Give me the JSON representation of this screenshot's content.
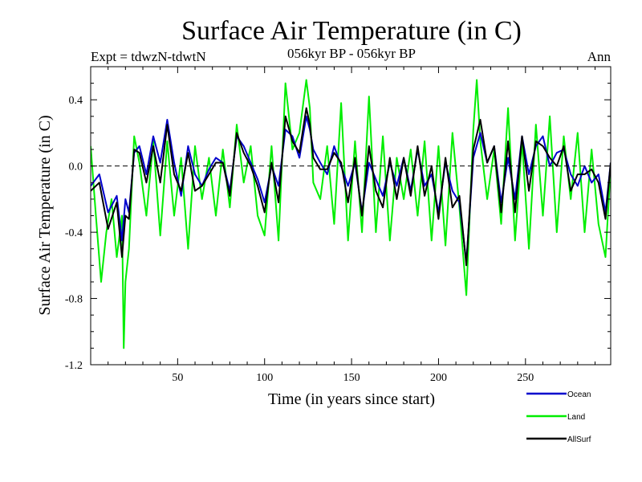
{
  "chart_data": {
    "type": "line",
    "title": "Surface Air Temperature (in C)",
    "subtitle": "056kyr BP - 056kyr BP",
    "left_label": "Expt = tdwzN-tdwtN",
    "right_label": "Ann",
    "xlabel": "Time (in years since start)",
    "ylabel": "Surface Air Temperature (in C)",
    "xlim": [
      0,
      299
    ],
    "ylim": [
      -1.2,
      0.6
    ],
    "xticks": [
      50,
      100,
      150,
      200,
      250
    ],
    "yticks": [
      0.4,
      0.0,
      -0.4,
      -0.8,
      -1.2
    ],
    "ytick_labels": [
      "0.4",
      "0.0",
      "-0.4",
      "-0.8",
      "-1.2"
    ],
    "reference_line": 0.0,
    "reference_line_style": "dashed",
    "grid": false,
    "legend_position": "bottom-right",
    "series": [
      {
        "name": "Ocean",
        "color": "#0000cc",
        "x": [
          0,
          5,
          10,
          15,
          18,
          20,
          22,
          25,
          28,
          32,
          36,
          40,
          44,
          48,
          52,
          56,
          60,
          64,
          68,
          72,
          76,
          80,
          84,
          88,
          92,
          96,
          100,
          104,
          108,
          112,
          116,
          120,
          124,
          126,
          128,
          132,
          136,
          140,
          144,
          148,
          152,
          156,
          160,
          164,
          168,
          172,
          176,
          180,
          184,
          188,
          192,
          196,
          200,
          204,
          208,
          212,
          216,
          220,
          224,
          228,
          232,
          236,
          240,
          244,
          248,
          252,
          256,
          260,
          264,
          268,
          272,
          276,
          280,
          284,
          288,
          292,
          296,
          299
        ],
        "y": [
          -0.12,
          -0.05,
          -0.28,
          -0.18,
          -0.45,
          -0.2,
          -0.28,
          0.08,
          0.12,
          -0.05,
          0.18,
          0.02,
          0.28,
          0.02,
          -0.18,
          0.12,
          -0.05,
          -0.12,
          -0.02,
          0.05,
          0.02,
          -0.15,
          0.18,
          0.12,
          0.02,
          -0.08,
          -0.22,
          0.0,
          -0.12,
          0.22,
          0.18,
          0.05,
          0.3,
          0.22,
          0.1,
          0.02,
          -0.05,
          0.12,
          0.0,
          -0.12,
          0.02,
          -0.28,
          0.02,
          -0.08,
          -0.18,
          0.02,
          -0.12,
          0.05,
          -0.15,
          0.1,
          -0.12,
          -0.05,
          -0.28,
          0.02,
          -0.15,
          -0.22,
          -0.58,
          0.05,
          0.2,
          0.02,
          0.12,
          -0.22,
          0.05,
          -0.2,
          0.18,
          -0.05,
          0.12,
          0.18,
          0.0,
          0.08,
          0.1,
          -0.05,
          -0.12,
          0.0,
          -0.1,
          -0.05,
          -0.28,
          0.02
        ]
      },
      {
        "name": "Land",
        "color": "#00ee00",
        "x": [
          0,
          3,
          6,
          9,
          12,
          15,
          18,
          19,
          20,
          22,
          25,
          28,
          32,
          36,
          40,
          44,
          48,
          52,
          56,
          60,
          64,
          68,
          72,
          76,
          80,
          84,
          88,
          92,
          96,
          100,
          104,
          108,
          112,
          116,
          120,
          124,
          126,
          128,
          132,
          136,
          140,
          144,
          148,
          152,
          156,
          160,
          164,
          168,
          172,
          176,
          180,
          184,
          188,
          192,
          196,
          200,
          204,
          208,
          212,
          216,
          220,
          222,
          224,
          228,
          232,
          236,
          240,
          244,
          248,
          252,
          256,
          260,
          264,
          268,
          272,
          276,
          280,
          284,
          288,
          292,
          296,
          299
        ],
        "y": [
          0.12,
          -0.3,
          -0.7,
          -0.4,
          -0.2,
          -0.55,
          -0.3,
          -1.1,
          -0.7,
          -0.5,
          0.18,
          0.02,
          -0.3,
          0.15,
          -0.42,
          0.15,
          -0.3,
          0.05,
          -0.5,
          0.12,
          -0.2,
          0.05,
          -0.3,
          0.1,
          -0.25,
          0.25,
          -0.1,
          0.12,
          -0.3,
          -0.42,
          0.12,
          -0.45,
          0.5,
          0.1,
          0.2,
          0.52,
          0.35,
          -0.1,
          -0.2,
          0.12,
          -0.35,
          0.38,
          -0.45,
          0.15,
          -0.4,
          0.42,
          -0.4,
          0.18,
          -0.45,
          0.05,
          -0.2,
          0.1,
          -0.3,
          0.15,
          -0.45,
          0.12,
          -0.48,
          0.2,
          -0.25,
          -0.78,
          0.22,
          0.52,
          0.15,
          -0.2,
          0.1,
          -0.35,
          0.35,
          -0.45,
          0.15,
          -0.5,
          0.25,
          -0.3,
          0.3,
          -0.4,
          0.18,
          -0.2,
          0.2,
          -0.4,
          0.1,
          -0.35,
          -0.55,
          0.0
        ]
      },
      {
        "name": "AllSurf",
        "color": "#000000",
        "x": [
          0,
          5,
          10,
          15,
          18,
          20,
          22,
          25,
          28,
          32,
          36,
          40,
          44,
          48,
          52,
          56,
          60,
          64,
          68,
          72,
          76,
          80,
          84,
          88,
          92,
          96,
          100,
          104,
          108,
          112,
          116,
          120,
          124,
          126,
          128,
          132,
          136,
          140,
          144,
          148,
          152,
          156,
          160,
          164,
          168,
          172,
          176,
          180,
          184,
          188,
          192,
          196,
          200,
          204,
          208,
          212,
          216,
          220,
          224,
          228,
          232,
          236,
          240,
          244,
          248,
          252,
          256,
          260,
          264,
          268,
          272,
          276,
          280,
          284,
          288,
          292,
          296,
          299
        ],
        "y": [
          -0.15,
          -0.1,
          -0.38,
          -0.22,
          -0.55,
          -0.3,
          -0.32,
          0.1,
          0.08,
          -0.1,
          0.12,
          -0.1,
          0.25,
          -0.05,
          -0.15,
          0.08,
          -0.15,
          -0.12,
          -0.05,
          0.02,
          0.02,
          -0.18,
          0.2,
          0.08,
          0.0,
          -0.12,
          -0.28,
          0.02,
          -0.22,
          0.3,
          0.15,
          0.08,
          0.35,
          0.25,
          0.05,
          -0.02,
          -0.02,
          0.08,
          0.02,
          -0.22,
          0.05,
          -0.3,
          0.12,
          -0.15,
          -0.25,
          0.05,
          -0.2,
          0.05,
          -0.18,
          0.12,
          -0.18,
          0.0,
          -0.32,
          0.05,
          -0.25,
          -0.18,
          -0.6,
          0.1,
          0.28,
          0.02,
          0.12,
          -0.28,
          0.15,
          -0.28,
          0.18,
          -0.15,
          0.15,
          0.12,
          0.05,
          0.0,
          0.12,
          -0.15,
          -0.05,
          -0.05,
          -0.02,
          -0.1,
          -0.32,
          0.02
        ]
      }
    ]
  }
}
